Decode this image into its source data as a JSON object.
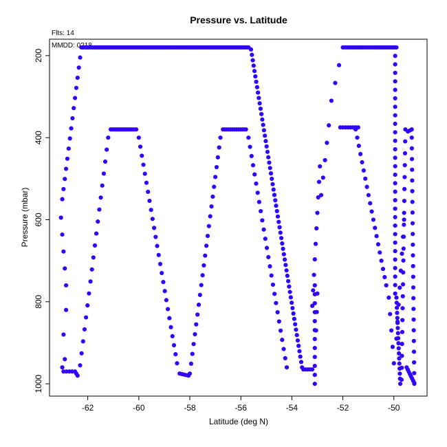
{
  "chart_data": {
    "type": "scatter",
    "title": "Pressure vs. Latitude",
    "annotations": {
      "flts": "Flts: 14",
      "mmdd": "MMDD: 0218"
    },
    "xlabel": "Latitude (deg N)",
    "ylabel": "Pressure (mbar)",
    "xlim": [
      -63.5,
      -48.7
    ],
    "ylim": [
      1030,
      160
    ],
    "y_inverted": true,
    "grid": false,
    "xticks": [
      -62,
      -60,
      -58,
      -56,
      -54,
      -52,
      -50
    ],
    "yticks": [
      200,
      400,
      600,
      800,
      1000
    ],
    "marker_color": "#3300ff",
    "segments": [
      {
        "from": [
          -63.0,
          960
        ],
        "to": [
          -62.9,
          940
        ],
        "n": 2
      },
      {
        "from": [
          -62.95,
          970
        ],
        "to": [
          -62.5,
          970
        ],
        "n": 5
      },
      {
        "from": [
          -62.45,
          975
        ],
        "to": [
          -62.4,
          980
        ],
        "n": 2
      },
      {
        "from": [
          -63.05,
          595
        ],
        "to": [
          -62.85,
          760
        ],
        "n": 5
      },
      {
        "from": [
          -63.0,
          550
        ],
        "to": [
          -62.25,
          180
        ],
        "n": 16
      },
      {
        "from": [
          -62.2,
          180
        ],
        "to": [
          -55.7,
          180
        ],
        "n": 120
      },
      {
        "from": [
          -55.6,
          185
        ],
        "to": [
          -53.6,
          960
        ],
        "n": 60
      },
      {
        "from": [
          -53.55,
          965
        ],
        "to": [
          -53.2,
          965
        ],
        "n": 5
      },
      {
        "from": [
          -62.95,
          880
        ],
        "to": [
          -62.85,
          820
        ],
        "n": 2
      },
      {
        "from": [
          -62.3,
          955
        ],
        "to": [
          -61.2,
          400
        ],
        "n": 20
      },
      {
        "from": [
          -61.1,
          380
        ],
        "to": [
          -60.1,
          380
        ],
        "n": 16
      },
      {
        "from": [
          -60.0,
          400
        ],
        "to": [
          -58.5,
          950
        ],
        "n": 26
      },
      {
        "from": [
          -58.4,
          975
        ],
        "to": [
          -58.05,
          980
        ],
        "n": 5
      },
      {
        "from": [
          -58.0,
          975
        ],
        "to": [
          -56.8,
          400
        ],
        "n": 25
      },
      {
        "from": [
          -56.7,
          380
        ],
        "to": [
          -55.8,
          380
        ],
        "n": 13
      },
      {
        "from": [
          -55.7,
          400
        ],
        "to": [
          -54.2,
          960
        ],
        "n": 26
      },
      {
        "from": [
          -53.1,
          760
        ],
        "to": [
          -53.1,
          1000
        ],
        "n": 12
      },
      {
        "from": [
          -53.05,
          870
        ],
        "to": [
          -53.0,
          780
        ],
        "n": 3
      },
      {
        "from": [
          -53.2,
          810
        ],
        "to": [
          -52.9,
          470
        ],
        "n": 10
      },
      {
        "from": [
          -52.85,
          540
        ],
        "to": [
          -52.55,
          370
        ],
        "n": 5
      },
      {
        "from": [
          -52.45,
          310
        ],
        "to": [
          -52.0,
          180
        ],
        "n": 4
      },
      {
        "from": [
          -51.95,
          180
        ],
        "to": [
          -49.9,
          180
        ],
        "n": 32
      },
      {
        "from": [
          -52.1,
          375
        ],
        "to": [
          -51.4,
          375
        ],
        "n": 8
      },
      {
        "from": [
          -51.5,
          380
        ],
        "to": [
          -50.3,
          760
        ],
        "n": 20
      },
      {
        "from": [
          -50.2,
          790
        ],
        "to": [
          -50.0,
          950
        ],
        "n": 5
      },
      {
        "from": [
          -49.95,
          180
        ],
        "to": [
          -49.95,
          780
        ],
        "n": 30
      },
      {
        "from": [
          -49.9,
          790
        ],
        "to": [
          -49.75,
          1000
        ],
        "n": 18
      },
      {
        "from": [
          -49.7,
          990
        ],
        "to": [
          -49.55,
          380
        ],
        "n": 22
      },
      {
        "from": [
          -49.45,
          385
        ],
        "to": [
          -49.3,
          380
        ],
        "n": 3
      },
      {
        "from": [
          -49.3,
          400
        ],
        "to": [
          -49.2,
          1000
        ],
        "n": 24
      },
      {
        "from": [
          -49.5,
          960
        ],
        "to": [
          -49.2,
          998
        ],
        "n": 8
      },
      {
        "from": [
          -49.9,
          890
        ],
        "to": [
          -49.6,
          600
        ],
        "n": 8
      }
    ]
  }
}
